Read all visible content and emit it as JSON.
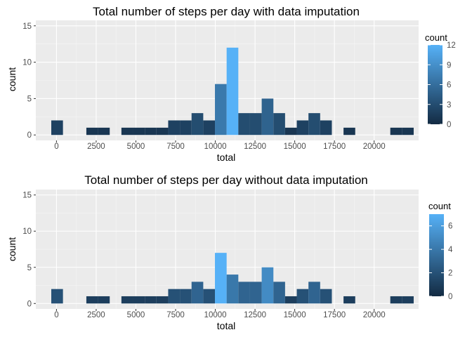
{
  "chart_data": [
    {
      "type": "bar",
      "title": "Total number of steps per day with data imputation",
      "xlabel": "total",
      "ylabel": "count",
      "xlim": [
        -1300,
        22800
      ],
      "ylim": [
        -0.75,
        15.75
      ],
      "x_ticks": [
        0,
        2500,
        5000,
        7500,
        10000,
        12500,
        15000,
        17500,
        20000
      ],
      "x_tick_labels": [
        "0",
        "2500",
        "5000",
        "7500",
        "10000",
        "12500",
        "15000",
        "17500",
        "20000"
      ],
      "y_ticks": [
        0,
        5,
        10,
        15
      ],
      "y_tick_labels": [
        "0",
        "5",
        "10",
        "15"
      ],
      "bin_width": 736,
      "bins": [
        {
          "x": 41,
          "count": 2
        },
        {
          "x": 2249,
          "count": 1
        },
        {
          "x": 2985,
          "count": 1
        },
        {
          "x": 4457,
          "count": 1
        },
        {
          "x": 5193,
          "count": 1
        },
        {
          "x": 5929,
          "count": 1
        },
        {
          "x": 6665,
          "count": 1
        },
        {
          "x": 7401,
          "count": 2
        },
        {
          "x": 8137,
          "count": 2
        },
        {
          "x": 8873,
          "count": 3
        },
        {
          "x": 9609,
          "count": 2
        },
        {
          "x": 10345,
          "count": 7
        },
        {
          "x": 11081,
          "count": 12
        },
        {
          "x": 11817,
          "count": 3
        },
        {
          "x": 12553,
          "count": 3
        },
        {
          "x": 13289,
          "count": 5
        },
        {
          "x": 14025,
          "count": 3
        },
        {
          "x": 14761,
          "count": 1
        },
        {
          "x": 15497,
          "count": 2
        },
        {
          "x": 16233,
          "count": 3
        },
        {
          "x": 16969,
          "count": 2
        },
        {
          "x": 18441,
          "count": 1
        },
        {
          "x": 21385,
          "count": 1
        },
        {
          "x": 22121,
          "count": 1
        }
      ],
      "legend": {
        "title": "count",
        "min": 0,
        "max": 12,
        "ticks": [
          0,
          3,
          6,
          9,
          12
        ],
        "tick_labels": [
          "0",
          "3",
          "6",
          "9",
          "12"
        ],
        "position": "right"
      },
      "colors": {
        "low": "#132b43",
        "high": "#56b1f7"
      },
      "grid": true
    },
    {
      "type": "bar",
      "title": "Total number of steps per day without data imputation",
      "xlabel": "total",
      "ylabel": "count",
      "xlim": [
        -1300,
        22800
      ],
      "ylim": [
        -0.75,
        15.75
      ],
      "x_ticks": [
        0,
        2500,
        5000,
        7500,
        10000,
        12500,
        15000,
        17500,
        20000
      ],
      "x_tick_labels": [
        "0",
        "2500",
        "5000",
        "7500",
        "10000",
        "12500",
        "15000",
        "17500",
        "20000"
      ],
      "y_ticks": [
        0,
        5,
        10,
        15
      ],
      "y_tick_labels": [
        "0",
        "5",
        "10",
        "15"
      ],
      "bin_width": 736,
      "bins": [
        {
          "x": 41,
          "count": 2
        },
        {
          "x": 2249,
          "count": 1
        },
        {
          "x": 2985,
          "count": 1
        },
        {
          "x": 4457,
          "count": 1
        },
        {
          "x": 5193,
          "count": 1
        },
        {
          "x": 5929,
          "count": 1
        },
        {
          "x": 6665,
          "count": 1
        },
        {
          "x": 7401,
          "count": 2
        },
        {
          "x": 8137,
          "count": 2
        },
        {
          "x": 8873,
          "count": 3
        },
        {
          "x": 9609,
          "count": 2
        },
        {
          "x": 10345,
          "count": 7
        },
        {
          "x": 11081,
          "count": 4
        },
        {
          "x": 11817,
          "count": 3
        },
        {
          "x": 12553,
          "count": 3
        },
        {
          "x": 13289,
          "count": 5
        },
        {
          "x": 14025,
          "count": 3
        },
        {
          "x": 14761,
          "count": 1
        },
        {
          "x": 15497,
          "count": 2
        },
        {
          "x": 16233,
          "count": 3
        },
        {
          "x": 16969,
          "count": 2
        },
        {
          "x": 18441,
          "count": 1
        },
        {
          "x": 21385,
          "count": 1
        },
        {
          "x": 22121,
          "count": 1
        }
      ],
      "legend": {
        "title": "count",
        "min": 0,
        "max": 7,
        "ticks": [
          0,
          2,
          4,
          6
        ],
        "tick_labels": [
          "0",
          "2",
          "4",
          "6"
        ],
        "position": "right"
      },
      "colors": {
        "low": "#132b43",
        "high": "#56b1f7"
      },
      "grid": true
    }
  ]
}
